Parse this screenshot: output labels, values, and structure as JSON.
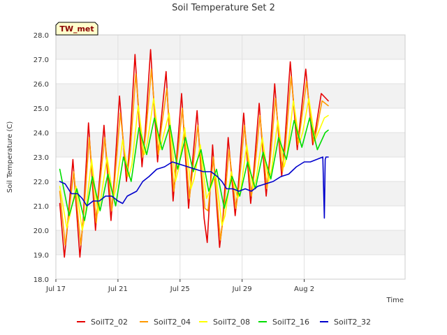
{
  "chart_data": {
    "type": "line",
    "title": "Soil Temperature Set 2",
    "xlabel": "Time",
    "ylabel": "Soil Temperature (C)",
    "badge": "TW_met",
    "ylim": [
      18.0,
      28.0
    ],
    "yticks": [
      "18.0",
      "19.0",
      "20.0",
      "21.0",
      "22.0",
      "23.0",
      "24.0",
      "25.0",
      "26.0",
      "27.0",
      "28.0"
    ],
    "xlim": [
      0,
      22.5
    ],
    "xticks": [
      {
        "day": 0,
        "label": "Jul 17"
      },
      {
        "day": 4,
        "label": "Jul 21"
      },
      {
        "day": 8,
        "label": "Jul 25"
      },
      {
        "day": 12,
        "label": "Jul 29"
      },
      {
        "day": 16,
        "label": "Aug 2"
      }
    ],
    "grid": true,
    "legend": "bottom",
    "colors": {
      "SoilT2_02": "#e60000",
      "SoilT2_04": "#ff9900",
      "SoilT2_08": "#ffff00",
      "SoilT2_16": "#00dd00",
      "SoilT2_32": "#0000cc"
    },
    "series": [
      {
        "name": "SoilT2_02",
        "x": [
          0.25,
          0.55,
          0.75,
          1.1,
          1.55,
          1.75,
          2.1,
          2.55,
          2.75,
          3.1,
          3.55,
          3.75,
          4.1,
          4.55,
          4.75,
          5.1,
          5.55,
          5.75,
          6.1,
          6.55,
          6.75,
          7.1,
          7.55,
          7.75,
          8.1,
          8.55,
          8.75,
          9.1,
          9.55,
          9.75,
          10.1,
          10.55,
          10.75,
          11.1,
          11.55,
          11.75,
          12.1,
          12.55,
          12.75,
          13.1,
          13.55,
          13.75,
          14.1,
          14.55,
          14.75,
          15.1,
          15.55,
          15.75,
          16.1,
          16.55,
          16.75,
          17.1,
          17.55
        ],
        "y": [
          21.1,
          18.9,
          20.2,
          22.9,
          18.9,
          20.4,
          24.4,
          20.0,
          21.6,
          24.3,
          20.4,
          22.0,
          25.5,
          22.0,
          23.4,
          27.2,
          22.6,
          24.0,
          27.4,
          22.8,
          24.3,
          26.5,
          21.2,
          22.7,
          25.6,
          20.9,
          22.4,
          24.9,
          20.5,
          19.5,
          23.5,
          19.3,
          20.4,
          23.8,
          20.6,
          21.8,
          24.8,
          21.1,
          22.4,
          25.2,
          21.4,
          22.8,
          26.0,
          22.2,
          23.6,
          26.9,
          23.3,
          24.5,
          26.6,
          23.5,
          24.2,
          25.6,
          25.3
        ]
      },
      {
        "name": "SoilT2_04",
        "x": [
          0.25,
          0.6,
          0.8,
          1.15,
          1.6,
          1.8,
          2.15,
          2.6,
          2.8,
          3.15,
          3.6,
          3.8,
          4.15,
          4.6,
          4.8,
          5.15,
          5.6,
          5.8,
          6.15,
          6.6,
          6.8,
          7.15,
          7.6,
          7.8,
          8.15,
          8.6,
          8.8,
          9.15,
          9.6,
          9.8,
          10.15,
          10.6,
          10.8,
          11.15,
          11.6,
          11.8,
          12.15,
          12.6,
          12.8,
          13.15,
          13.6,
          13.8,
          14.15,
          14.6,
          14.8,
          15.15,
          15.6,
          15.8,
          16.15,
          16.6,
          16.8,
          17.15,
          17.55
        ],
        "y": [
          21.6,
          19.4,
          20.5,
          22.4,
          19.4,
          20.7,
          23.8,
          20.3,
          21.7,
          23.8,
          20.8,
          22.1,
          24.8,
          22.2,
          23.3,
          26.4,
          23.0,
          24.0,
          26.6,
          23.1,
          24.2,
          25.8,
          21.6,
          22.8,
          25.0,
          21.3,
          22.4,
          24.3,
          20.9,
          20.8,
          23.0,
          19.6,
          20.6,
          23.3,
          20.9,
          21.8,
          24.3,
          21.4,
          22.4,
          24.7,
          21.7,
          22.8,
          25.4,
          22.4,
          23.5,
          26.3,
          23.5,
          24.4,
          26.1,
          23.6,
          24.1,
          25.3,
          25.1
        ]
      },
      {
        "name": "SoilT2_08",
        "x": [
          0.25,
          0.7,
          0.9,
          1.3,
          1.7,
          1.9,
          2.3,
          2.7,
          2.9,
          3.3,
          3.7,
          3.9,
          4.3,
          4.7,
          4.9,
          5.3,
          5.7,
          5.9,
          6.3,
          6.7,
          6.9,
          7.3,
          7.7,
          7.9,
          8.3,
          8.7,
          8.9,
          9.3,
          9.7,
          9.9,
          10.3,
          10.7,
          10.9,
          11.3,
          11.7,
          11.9,
          12.3,
          12.7,
          12.9,
          13.3,
          13.7,
          13.9,
          14.3,
          14.7,
          14.9,
          15.3,
          15.7,
          15.9,
          16.3,
          16.7,
          16.9,
          17.3,
          17.55
        ],
        "y": [
          21.8,
          20.1,
          20.6,
          21.8,
          20.0,
          20.6,
          22.9,
          20.7,
          21.3,
          23.0,
          21.3,
          21.8,
          23.7,
          22.2,
          22.7,
          25.1,
          23.1,
          23.6,
          25.4,
          23.3,
          23.8,
          24.8,
          22.0,
          22.5,
          24.2,
          21.7,
          22.1,
          23.5,
          21.3,
          21.6,
          22.3,
          20.2,
          20.6,
          22.4,
          21.3,
          21.6,
          23.5,
          21.7,
          22.1,
          23.8,
          22.0,
          22.5,
          24.5,
          22.6,
          23.1,
          25.3,
          23.6,
          24.0,
          25.4,
          23.7,
          24.0,
          24.6,
          24.7
        ]
      },
      {
        "name": "SoilT2_16",
        "x": [
          0.25,
          0.85,
          1.35,
          1.85,
          2.35,
          2.85,
          3.35,
          3.85,
          4.35,
          4.85,
          5.35,
          5.85,
          6.35,
          6.85,
          7.35,
          7.85,
          8.35,
          8.85,
          9.35,
          9.85,
          10.35,
          10.85,
          11.35,
          11.85,
          12.35,
          12.85,
          13.35,
          13.85,
          14.35,
          14.85,
          15.35,
          15.85,
          16.35,
          16.85,
          17.35,
          17.55
        ],
        "y": [
          22.5,
          20.6,
          21.7,
          20.4,
          22.2,
          20.8,
          22.3,
          21.0,
          23.0,
          22.0,
          24.2,
          23.1,
          24.6,
          23.3,
          24.3,
          22.5,
          23.8,
          22.4,
          23.3,
          21.6,
          22.5,
          20.9,
          22.2,
          21.4,
          22.8,
          21.7,
          23.2,
          22.1,
          23.8,
          22.9,
          24.5,
          23.4,
          24.6,
          23.3,
          24.0,
          24.1
        ]
      },
      {
        "name": "SoilT2_32",
        "x": [
          0.25,
          0.6,
          1.0,
          1.4,
          1.7,
          2.0,
          2.4,
          2.8,
          3.2,
          3.6,
          4.0,
          4.3,
          4.6,
          4.9,
          5.2,
          5.6,
          6.0,
          6.5,
          7.0,
          7.5,
          8.0,
          8.5,
          9.0,
          9.5,
          10.0,
          10.4,
          10.7,
          11.0,
          11.4,
          11.8,
          12.2,
          12.6,
          13.0,
          13.5,
          14.0,
          14.5,
          15.0,
          15.5,
          16.0,
          16.4,
          16.8,
          17.2,
          17.3,
          17.35,
          17.4,
          17.55
        ],
        "y": [
          22.0,
          21.9,
          21.5,
          21.5,
          21.3,
          21.0,
          21.2,
          21.2,
          21.4,
          21.4,
          21.2,
          21.1,
          21.4,
          21.5,
          21.6,
          22.0,
          22.2,
          22.5,
          22.6,
          22.8,
          22.7,
          22.6,
          22.5,
          22.4,
          22.4,
          22.2,
          22.0,
          21.7,
          21.7,
          21.6,
          21.7,
          21.6,
          21.8,
          21.9,
          22.0,
          22.2,
          22.3,
          22.6,
          22.8,
          22.8,
          22.9,
          23.0,
          20.5,
          22.9,
          23.0,
          23.0
        ]
      }
    ]
  }
}
